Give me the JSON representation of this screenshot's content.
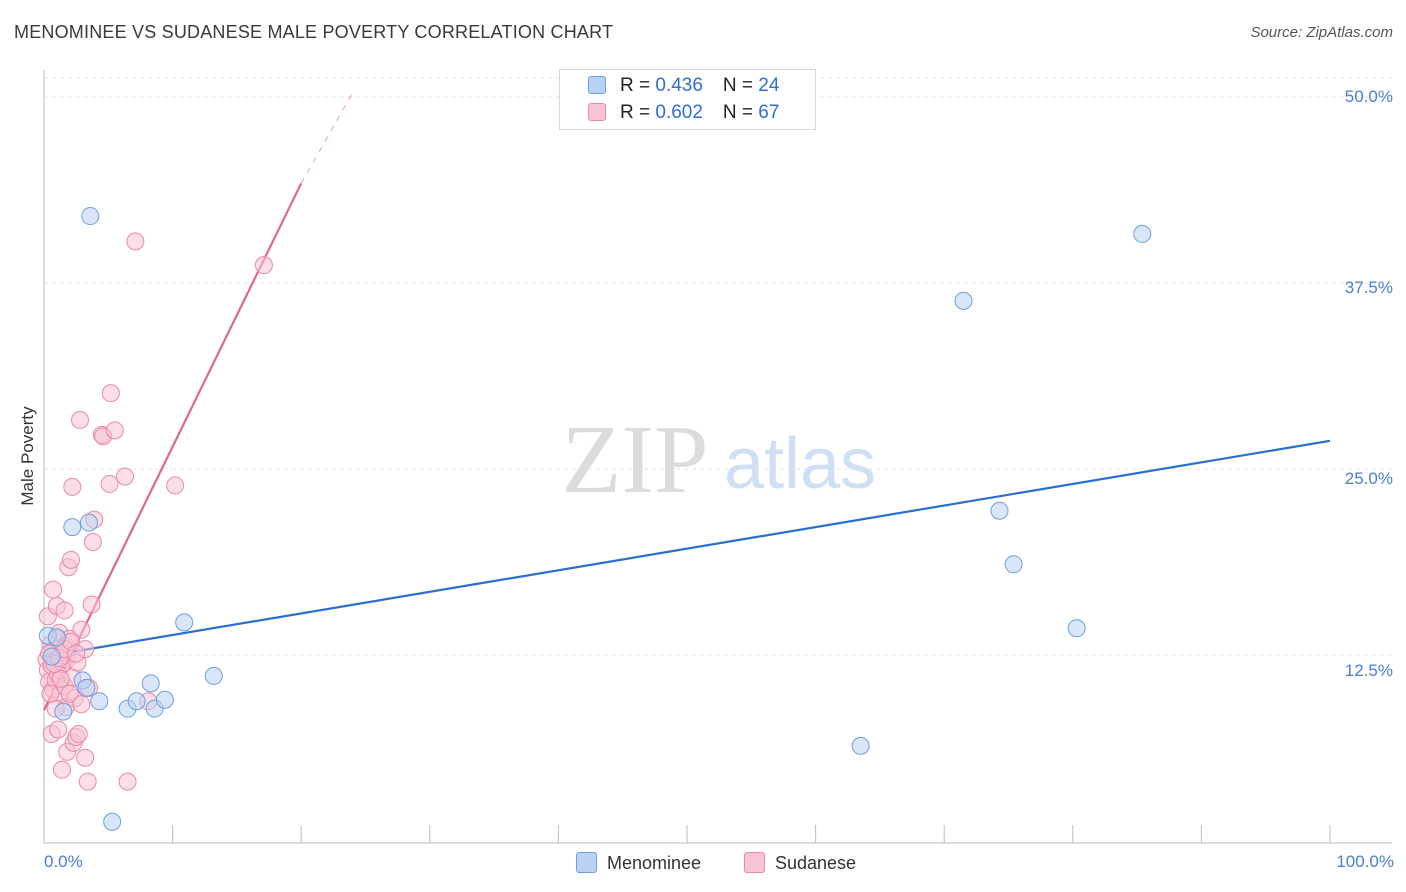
{
  "title": "MENOMINEE VS SUDANESE MALE POVERTY CORRELATION CHART",
  "source": "Source: ZipAtlas.com",
  "watermark": {
    "zip": "ZIP",
    "atlas": "atlas"
  },
  "colors": {
    "blue_fill": "#b9d1f3",
    "blue_stroke": "#6f9fe0",
    "blue_line": "#2a6fd0",
    "pink_fill": "#f8c3d3",
    "pink_stroke": "#e98aa8",
    "pink_line": "#e06690",
    "tick_text": "#4a7fd0",
    "grid": "#e3e3e3"
  },
  "legend": {
    "rows": [
      {
        "r_label": "R = ",
        "r_value": "0.436",
        "n_label": "N = ",
        "n_value": "24"
      },
      {
        "r_label": "R = ",
        "r_value": "0.602",
        "n_label": "N = ",
        "n_value": "67"
      }
    ]
  },
  "chart_data": {
    "type": "scatter",
    "title": "MENOMINEE VS SUDANESE MALE POVERTY CORRELATION CHART",
    "xlabel": "",
    "ylabel": "Male Poverty",
    "xlim": [
      0,
      100
    ],
    "ylim": [
      0,
      52.5
    ],
    "x_tick_labels": {
      "min": "0.0%",
      "max": "100.0%"
    },
    "y_ticks": [
      {
        "value": 12.5,
        "label": "12.5%"
      },
      {
        "value": 25.0,
        "label": "25.0%"
      },
      {
        "value": 37.5,
        "label": "37.5%"
      },
      {
        "value": 50.0,
        "label": "50.0%"
      }
    ],
    "grid": true,
    "legend_position": "top-center",
    "series": [
      {
        "name": "Menominee",
        "color": "#6f9fe0",
        "r": 0.436,
        "n": 24,
        "trend": {
          "x0": 0,
          "y0": 12.4,
          "x1": 100,
          "y1": 26.9
        },
        "points": [
          [
            0.3,
            13.8
          ],
          [
            0.6,
            12.4
          ],
          [
            1.0,
            13.7
          ],
          [
            1.5,
            8.7
          ],
          [
            3.5,
            21.4
          ],
          [
            2.2,
            21.1
          ],
          [
            3.6,
            42.0
          ],
          [
            3.0,
            10.8
          ],
          [
            3.3,
            10.3
          ],
          [
            4.3,
            9.4
          ],
          [
            5.3,
            1.3
          ],
          [
            6.5,
            8.9
          ],
          [
            7.2,
            9.4
          ],
          [
            8.3,
            10.6
          ],
          [
            8.6,
            8.9
          ],
          [
            9.4,
            9.5
          ],
          [
            10.9,
            14.7
          ],
          [
            13.2,
            11.1
          ],
          [
            63.5,
            6.4
          ],
          [
            71.5,
            36.3
          ],
          [
            74.3,
            22.2
          ],
          [
            75.4,
            18.6
          ],
          [
            80.3,
            14.3
          ],
          [
            85.4,
            40.8
          ]
        ]
      },
      {
        "name": "Sudanese",
        "color": "#e98aa8",
        "r": 0.602,
        "n": 67,
        "trend": {
          "x0": 0,
          "y0": 8.8,
          "x1": 20,
          "y1": 44.2,
          "dashed_to": {
            "x": 24,
            "y": 50.3
          }
        },
        "points": [
          [
            0.2,
            12.2
          ],
          [
            0.3,
            11.5
          ],
          [
            0.4,
            10.7
          ],
          [
            0.5,
            13.2
          ],
          [
            0.6,
            11.8
          ],
          [
            0.7,
            10.2
          ],
          [
            0.8,
            12.9
          ],
          [
            0.9,
            10.8
          ],
          [
            1.0,
            13.6
          ],
          [
            1.1,
            11.2
          ],
          [
            1.2,
            14.0
          ],
          [
            1.3,
            9.9
          ],
          [
            1.4,
            12.5
          ],
          [
            1.5,
            11.9
          ],
          [
            1.6,
            10.4
          ],
          [
            1.7,
            13.1
          ],
          [
            1.8,
            12.2
          ],
          [
            0.3,
            15.1
          ],
          [
            0.7,
            16.9
          ],
          [
            1.0,
            15.8
          ],
          [
            1.6,
            15.5
          ],
          [
            2.0,
            13.6
          ],
          [
            2.2,
            11.0
          ],
          [
            2.4,
            9.6
          ],
          [
            2.6,
            12.0
          ],
          [
            2.9,
            14.2
          ],
          [
            3.2,
            12.9
          ],
          [
            3.5,
            10.3
          ],
          [
            1.9,
            18.4
          ],
          [
            2.1,
            18.9
          ],
          [
            2.2,
            23.8
          ],
          [
            2.8,
            28.3
          ],
          [
            3.7,
            15.9
          ],
          [
            3.8,
            20.1
          ],
          [
            3.9,
            21.6
          ],
          [
            4.5,
            27.3
          ],
          [
            4.6,
            27.2
          ],
          [
            5.1,
            24.0
          ],
          [
            5.2,
            30.1
          ],
          [
            5.5,
            27.6
          ],
          [
            6.3,
            24.5
          ],
          [
            7.1,
            40.3
          ],
          [
            10.2,
            23.9
          ],
          [
            17.1,
            38.7
          ],
          [
            0.6,
            7.2
          ],
          [
            1.4,
            4.8
          ],
          [
            1.8,
            6.0
          ],
          [
            2.3,
            6.6
          ],
          [
            2.5,
            7.0
          ],
          [
            2.7,
            7.2
          ],
          [
            3.2,
            5.6
          ],
          [
            3.4,
            4.0
          ],
          [
            6.5,
            4.0
          ],
          [
            8.1,
            9.4
          ],
          [
            1.1,
            7.5
          ],
          [
            1.7,
            9.0
          ],
          [
            0.9,
            8.9
          ],
          [
            1.3,
            10.9
          ],
          [
            2.0,
            9.9
          ],
          [
            2.9,
            9.2
          ],
          [
            0.4,
            12.6
          ],
          [
            0.8,
            11.9
          ],
          [
            1.2,
            12.3
          ],
          [
            1.6,
            12.9
          ],
          [
            2.1,
            13.4
          ],
          [
            2.5,
            12.6
          ],
          [
            0.5,
            9.9
          ]
        ]
      }
    ]
  },
  "bottom_legend": {
    "menominee": "Menominee",
    "sudanese": "Sudanese"
  }
}
